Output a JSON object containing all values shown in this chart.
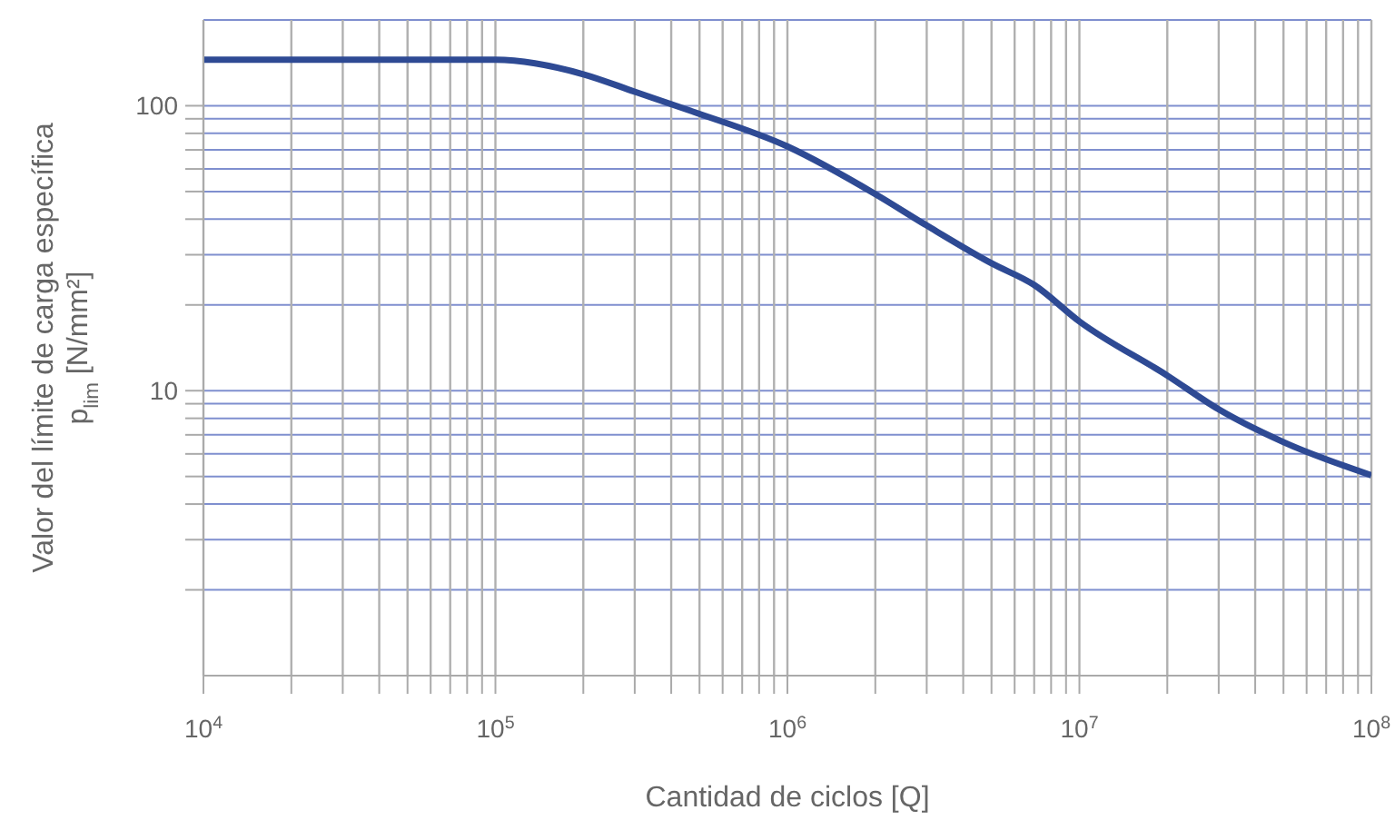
{
  "chart_data": {
    "type": "line",
    "xlabel": "Cantidad de ciclos [Q]",
    "ylabel": "Valor del límite de carga específica\np$_{lim}$ [N/mm²]",
    "log": "xy",
    "grid": true,
    "marker": "none",
    "line_style": "solid",
    "xlim": [
      10000,
      100000000
    ],
    "ylim": [
      1,
      200
    ],
    "xticks": [
      {
        "value": 10000,
        "label": "10$^{4}$"
      },
      {
        "value": 20000,
        "label": null
      },
      {
        "value": 30000,
        "label": null
      },
      {
        "value": 40000,
        "label": null
      },
      {
        "value": 50000,
        "label": null
      },
      {
        "value": 60000,
        "label": null
      },
      {
        "value": 70000,
        "label": null
      },
      {
        "value": 80000,
        "label": null
      },
      {
        "value": 90000,
        "label": null
      },
      {
        "value": 100000,
        "label": "10$^{5}$"
      },
      {
        "value": 200000,
        "label": null
      },
      {
        "value": 300000,
        "label": null
      },
      {
        "value": 400000,
        "label": null
      },
      {
        "value": 500000,
        "label": null
      },
      {
        "value": 600000,
        "label": null
      },
      {
        "value": 700000,
        "label": null
      },
      {
        "value": 800000,
        "label": null
      },
      {
        "value": 900000,
        "label": null
      },
      {
        "value": 1000000,
        "label": "10$^{6}$"
      },
      {
        "value": 2000000,
        "label": null
      },
      {
        "value": 3000000,
        "label": null
      },
      {
        "value": 4000000,
        "label": null
      },
      {
        "value": 5000000,
        "label": null
      },
      {
        "value": 6000000,
        "label": null
      },
      {
        "value": 7000000,
        "label": null
      },
      {
        "value": 8000000,
        "label": null
      },
      {
        "value": 9000000,
        "label": null
      },
      {
        "value": 10000000,
        "label": "10$^{7}$"
      },
      {
        "value": 20000000,
        "label": null
      },
      {
        "value": 30000000,
        "label": null
      },
      {
        "value": 40000000,
        "label": null
      },
      {
        "value": 50000000,
        "label": null
      },
      {
        "value": 60000000,
        "label": null
      },
      {
        "value": 70000000,
        "label": null
      },
      {
        "value": 80000000,
        "label": null
      },
      {
        "value": 90000000,
        "label": null
      },
      {
        "value": 100000000,
        "label": "10$^{8}$"
      }
    ],
    "yticks": [
      {
        "value": 2,
        "label": null
      },
      {
        "value": 3,
        "label": null
      },
      {
        "value": 4,
        "label": null
      },
      {
        "value": 5,
        "label": null
      },
      {
        "value": 6,
        "label": null
      },
      {
        "value": 7,
        "label": null
      },
      {
        "value": 8,
        "label": null
      },
      {
        "value": 9,
        "label": null
      },
      10,
      {
        "value": 20,
        "label": null
      },
      {
        "value": 30,
        "label": null
      },
      {
        "value": 40,
        "label": null
      },
      {
        "value": 50,
        "label": null
      },
      {
        "value": 60,
        "label": null
      },
      {
        "value": 70,
        "label": null
      },
      {
        "value": 80,
        "label": null
      },
      {
        "value": 90,
        "label": null
      },
      100
    ],
    "series": [
      {
        "color": "#2e4a94",
        "x": [
          10000,
          100000,
          200000,
          300000,
          466000,
          1000000,
          2000000,
          3000000,
          5000000,
          7000000,
          10000000,
          20000000,
          30000000,
          50000000,
          100000000
        ],
        "values": [
          145,
          145,
          129,
          112,
          96,
          72,
          49,
          38,
          28,
          23.5,
          17.5,
          11.3,
          8.6,
          6.6,
          5.05
        ]
      }
    ]
  }
}
